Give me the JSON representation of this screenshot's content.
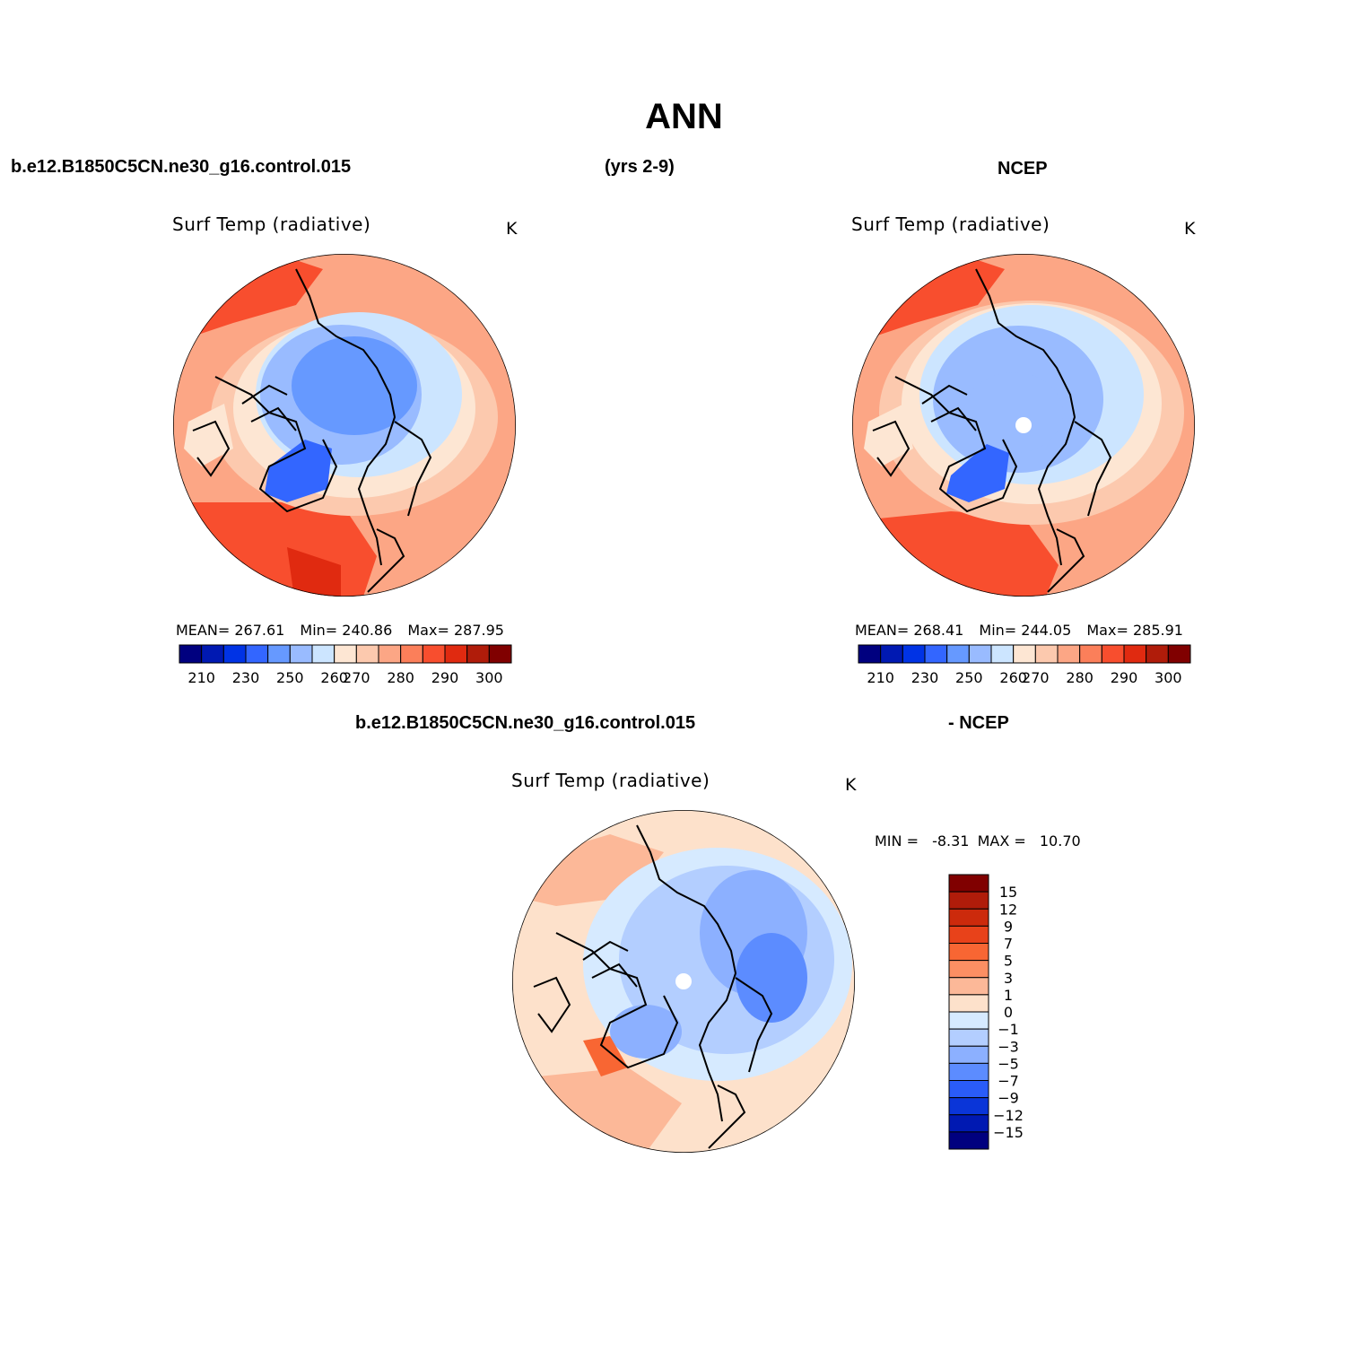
{
  "figure": {
    "title": "ANN",
    "case_name": "b.e12.B1850C5CN.ne30_g16.control.015",
    "years": "(yrs 2-9)",
    "obs_name": "NCEP",
    "diff_case_name": "b.e12.B1850C5CN.ne30_g16.control.015",
    "diff_obs_name": "- NCEP"
  },
  "panels": [
    {
      "id": "model",
      "variable": "Surf Temp (radiative)",
      "units": "K",
      "mean_label": "MEAN=",
      "mean": "267.61",
      "min_label": "Min=",
      "min": "240.86",
      "max_label": "Max=",
      "max": "287.95"
    },
    {
      "id": "obs",
      "variable": "Surf Temp (radiative)",
      "units": "K",
      "mean_label": "MEAN=",
      "mean": "268.41",
      "min_label": "Min=",
      "min": "244.05",
      "max_label": "Max=",
      "max": "285.91"
    },
    {
      "id": "diff",
      "variable": "Surf Temp (radiative)",
      "units": "K",
      "min_label": "MIN =",
      "min": "-8.31",
      "max_label": "MAX =",
      "max": "10.70"
    }
  ],
  "horizontal_colorbar": {
    "colors": [
      "#00007f",
      "#0019b2",
      "#0033e5",
      "#3366ff",
      "#6699ff",
      "#99bbff",
      "#cce5ff",
      "#fde6d3",
      "#fcc9ae",
      "#fca685",
      "#fb7f5a",
      "#f84e2e",
      "#e02a10",
      "#b01c0a",
      "#800000"
    ],
    "tick_labels": [
      "210",
      "230",
      "250",
      "260",
      "270",
      "280",
      "290",
      "300"
    ]
  },
  "vertical_colorbar": {
    "colors": [
      "#800000",
      "#b01c0a",
      "#cc2a0c",
      "#e8421a",
      "#f86633",
      "#fc8f63",
      "#fcb898",
      "#fde1cb",
      "#d6eaff",
      "#b3ceff",
      "#8cb0ff",
      "#5c8cff",
      "#2a5cf8",
      "#0a35d8",
      "#0019b2",
      "#00007f"
    ],
    "tick_labels": [
      "15",
      "12",
      "9",
      "7",
      "5",
      "3",
      "1",
      "0",
      "−1",
      "−3",
      "−5",
      "−7",
      "−9",
      "−12",
      "−15"
    ]
  }
}
